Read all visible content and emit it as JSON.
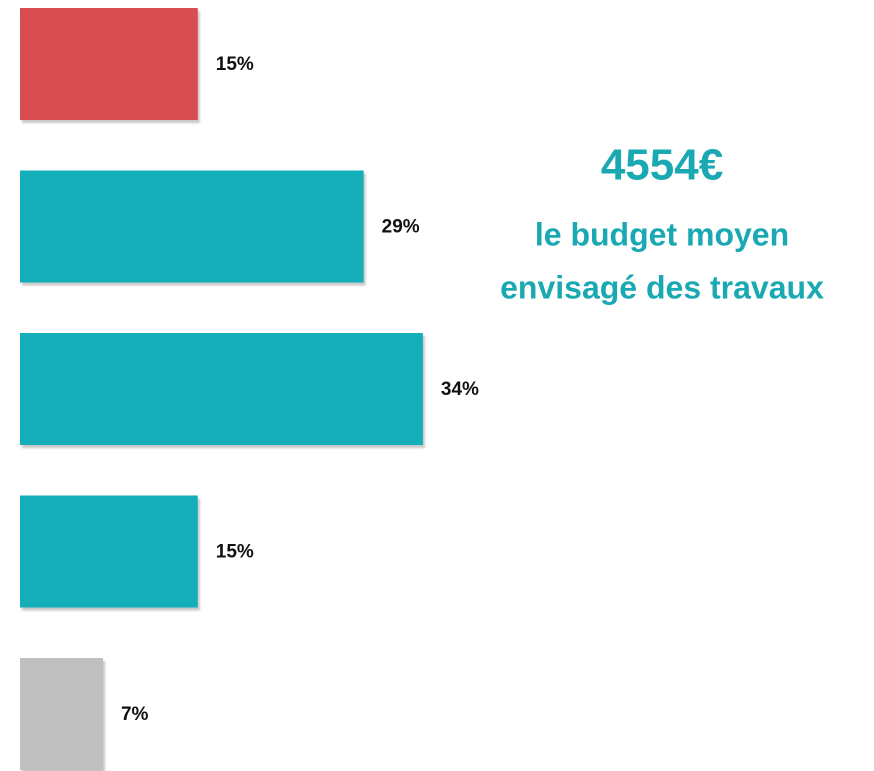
{
  "chart_data": {
    "type": "bar",
    "orientation": "horizontal",
    "categories": [
      null,
      null,
      null,
      null,
      null
    ],
    "values": [
      15,
      29,
      34,
      15,
      7
    ],
    "value_labels": [
      "15%",
      "29%",
      "34%",
      "15%",
      "7%"
    ],
    "colors": [
      "#d94c4f",
      "#13aeb7",
      "#13aeb7",
      "#13aeb7",
      "#bfbfbf"
    ],
    "annotations": [
      "4554€",
      "le budget moyen",
      "envisagé des travaux"
    ]
  }
}
